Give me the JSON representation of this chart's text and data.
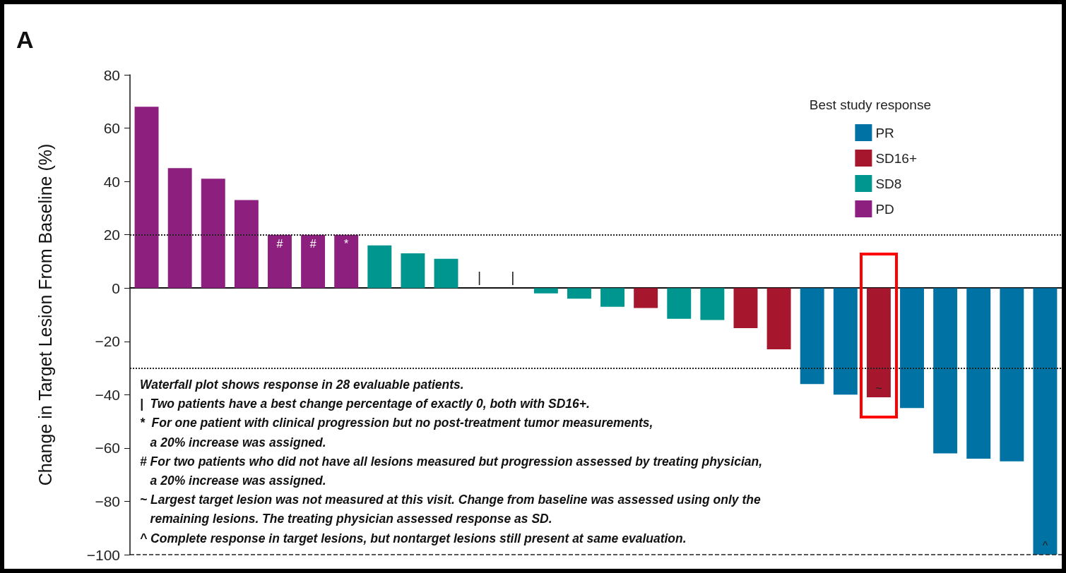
{
  "chart_data": {
    "type": "bar",
    "title": "A",
    "ylabel": "Change in Target Lesion From Baseline (%)",
    "legend_title": "Best study response",
    "legend": "top right",
    "grid": false,
    "categories": [
      null,
      null,
      null,
      null,
      null,
      null,
      null,
      null,
      null,
      null,
      null,
      null,
      null,
      null,
      null,
      null,
      null,
      null,
      null,
      null,
      null,
      null,
      null,
      null,
      null,
      null,
      null,
      null
    ],
    "ylim": [
      -100,
      80
    ],
    "yticks": [
      -100,
      -80,
      -60,
      -40,
      -20,
      0,
      20,
      40,
      60,
      80
    ],
    "series": [
      {
        "name": "PR",
        "color": "#0072a3",
        "values": [
          null,
          null,
          null,
          null,
          null,
          null,
          null,
          null,
          null,
          null,
          null,
          null,
          null,
          null,
          null,
          null,
          null,
          null,
          null,
          null,
          -36,
          -40,
          null,
          -45,
          -62,
          -64,
          -65,
          -100
        ],
        "value_labels": [
          null,
          null,
          null,
          null,
          null,
          null,
          null,
          null,
          null,
          null,
          null,
          null,
          null,
          null,
          null,
          null,
          null,
          null,
          null,
          null,
          null,
          null,
          null,
          null,
          null,
          null,
          null,
          "^"
        ]
      },
      {
        "name": "SD16+",
        "color": "#a6172d",
        "values": [
          null,
          null,
          null,
          null,
          null,
          null,
          null,
          null,
          null,
          null,
          0,
          0,
          null,
          null,
          null,
          -7.5,
          null,
          null,
          -15,
          -23,
          null,
          null,
          -41,
          null,
          null,
          null,
          null,
          null
        ],
        "value_labels": [
          null,
          null,
          null,
          null,
          null,
          null,
          null,
          null,
          null,
          null,
          "|",
          "|",
          null,
          null,
          null,
          null,
          null,
          null,
          null,
          null,
          null,
          null,
          "~",
          null,
          null,
          null,
          null,
          null
        ]
      },
      {
        "name": "SD8",
        "color": "#009690",
        "values": [
          null,
          null,
          null,
          null,
          null,
          null,
          null,
          16,
          13,
          11,
          null,
          null,
          -2,
          -4,
          -7,
          null,
          -11.5,
          -12,
          null,
          null,
          null,
          null,
          null,
          null,
          null,
          null,
          null,
          null
        ]
      },
      {
        "name": "PD",
        "color": "#8d1f7e",
        "values": [
          68,
          45,
          41,
          33,
          20,
          20,
          20,
          null,
          null,
          null,
          null,
          null,
          null,
          null,
          null,
          null,
          null,
          null,
          null,
          null,
          null,
          null,
          null,
          null,
          null,
          null,
          null,
          null
        ],
        "value_labels": [
          null,
          null,
          null,
          null,
          "#",
          "#",
          "*",
          null,
          null,
          null,
          null,
          null,
          null,
          null,
          null,
          null,
          null,
          null,
          null,
          null,
          null,
          null,
          null,
          null,
          null,
          null,
          null,
          null
        ]
      }
    ],
    "ref_lines": [
      {
        "axis": "y",
        "value": 20,
        "label": null,
        "line_style": "dotted"
      },
      {
        "axis": "y",
        "value": -30,
        "label": null,
        "line_style": "dotted"
      },
      {
        "axis": "y",
        "value": -100,
        "label": null,
        "line_style": "dashed"
      }
    ],
    "annotations": [
      "Waterfall plot shows response in 28 evaluable patients.",
      "|  Two patients have a best change percentage of exactly 0, both with SD16+.",
      "*  For one patient with clinical progression but no post-treatment tumor measurements,\n   a 20% increase was assigned.",
      "# For two patients who did not have all lesions measured but progression assessed by treating physician,\n   a 20% increase was assigned.",
      "~ Largest target lesion was not measured at this visit. Change from baseline was assessed using only the\n   remaining lesions. The treating physician assessed response as SD.",
      "^ Complete response in target lesions, but nontarget lesions still present at same evaluation."
    ]
  }
}
